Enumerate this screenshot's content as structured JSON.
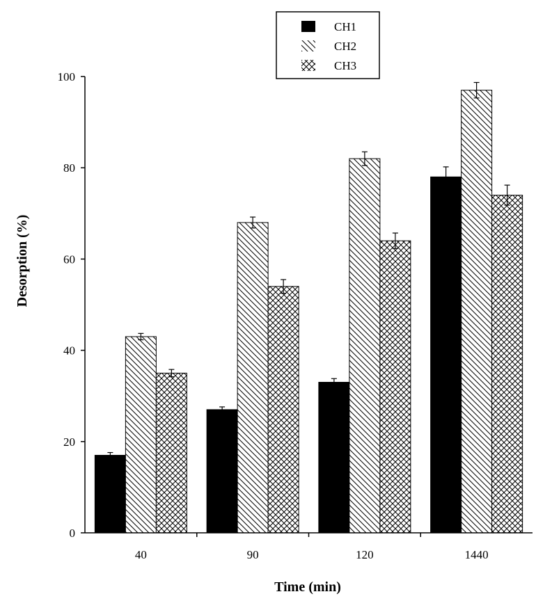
{
  "chart_data": {
    "type": "bar",
    "title": "",
    "xlabel": "Time (min)",
    "ylabel": "Desorption (%)",
    "categories": [
      "40",
      "90",
      "120",
      "1440"
    ],
    "ylim": [
      0,
      100
    ],
    "yticks": [
      "0",
      "20",
      "40",
      "60",
      "80",
      "100"
    ],
    "grid": false,
    "legend_position": "top-center",
    "series": [
      {
        "name": "CH1",
        "fill": "solid",
        "color": "#000000",
        "values": [
          17,
          27,
          33,
          78
        ],
        "errors": [
          0.6,
          0.6,
          0.8,
          2.2
        ]
      },
      {
        "name": "CH2",
        "fill": "diagonal-hatch",
        "color": "#000000",
        "values": [
          43,
          68,
          82,
          97
        ],
        "errors": [
          0.7,
          1.2,
          1.5,
          1.7
        ]
      },
      {
        "name": "CH3",
        "fill": "cross-hatch",
        "color": "#000000",
        "values": [
          35,
          54,
          64,
          74
        ],
        "errors": [
          0.8,
          1.5,
          1.7,
          2.2
        ]
      }
    ]
  }
}
